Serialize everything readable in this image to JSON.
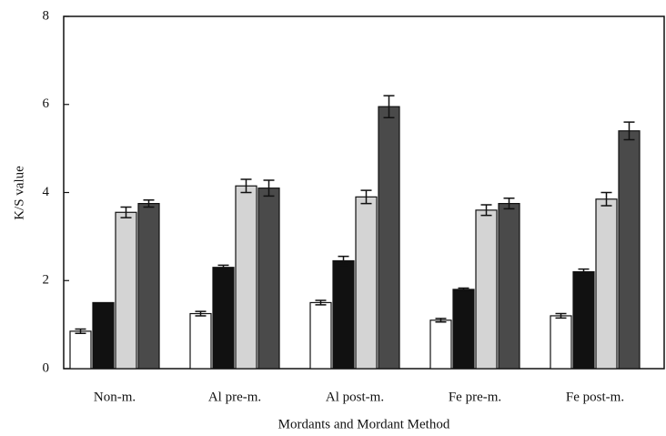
{
  "chart_data": {
    "type": "bar",
    "x_label": "Mordants and Mordant Method",
    "y_label": "K/S value",
    "categories": [
      "Non-m.",
      "Al pre-m.",
      "Al post-m.",
      "Fe pre-m.",
      "Fe post-m."
    ],
    "series": [
      {
        "color": "#ffffff",
        "values": [
          0.85,
          1.25,
          1.5,
          1.1,
          1.2
        ],
        "errors": [
          0.05,
          0.05,
          0.05,
          0.04,
          0.05
        ]
      },
      {
        "color": "#111111",
        "values": [
          1.5,
          2.3,
          2.45,
          1.8,
          2.2
        ],
        "errors": [
          null,
          0.05,
          0.1,
          0.03,
          0.06
        ]
      },
      {
        "color": "#d4d4d4",
        "values": [
          3.55,
          4.15,
          3.9,
          3.6,
          3.85
        ],
        "errors": [
          0.12,
          0.15,
          0.15,
          0.12,
          0.15
        ]
      },
      {
        "color": "#4a4a4a",
        "values": [
          3.75,
          4.1,
          5.95,
          3.75,
          5.4
        ],
        "errors": [
          0.08,
          0.18,
          0.25,
          0.12,
          0.2
        ]
      }
    ],
    "ylim": [
      0,
      8
    ],
    "yticks": [
      0,
      2,
      4,
      6,
      8
    ]
  }
}
